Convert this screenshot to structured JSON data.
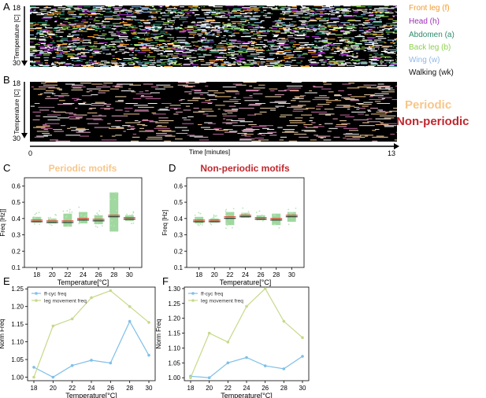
{
  "panels": {
    "A": {
      "letter": "A",
      "ylabel": "Temperature [C]",
      "tick_top": "18",
      "tick_bottom": "30",
      "legend": [
        {
          "label": "Front leg (f)",
          "color": "#f39a2e"
        },
        {
          "label": "Head (h)",
          "color": "#9b2fb8"
        },
        {
          "label": "Abdomen (a)",
          "color": "#2e8b6e"
        },
        {
          "label": "Back leg (b)",
          "color": "#8fd14f"
        },
        {
          "label": "Wing (w)",
          "color": "#8fb8e6"
        },
        {
          "label": "Walking (wk)",
          "color": "#111111"
        }
      ]
    },
    "B": {
      "letter": "B",
      "ylabel": "Temperature [C]",
      "tick_top": "18",
      "tick_bottom": "30",
      "legend": [
        {
          "label": "Periodic",
          "color": "#f7c68a"
        },
        {
          "label": "Non-periodic",
          "color": "#c0282e"
        }
      ],
      "time_label": "Time [minutes]",
      "time_start": "0",
      "time_end": "13"
    }
  },
  "colors": {
    "periodic": "#f7c68a",
    "nonperiodic": "#c0282e",
    "box": "#8fd18f",
    "median": "#d93a2a",
    "point": "#b9e3b9",
    "ffcyc": "#7fbfe8",
    "legmove": "#c7d98a"
  },
  "chart_data": [
    {
      "id": "C",
      "letter": "C",
      "type": "box",
      "title": "Periodic motifs",
      "title_color": "#f7c68a",
      "xlabel": "Temperature[°C]",
      "ylabel": "Freq [Hz]]",
      "categories": [
        "18",
        "20",
        "22",
        "24",
        "26",
        "28",
        "30"
      ],
      "ylim": [
        0.1,
        0.65
      ],
      "yticks": [
        "0.1",
        "0.2",
        "0.3",
        "0.4",
        "0.5",
        "0.6"
      ],
      "boxes": [
        {
          "q1": 0.375,
          "median": 0.39,
          "q3": 0.41
        },
        {
          "q1": 0.37,
          "median": 0.385,
          "q3": 0.4
        },
        {
          "q1": 0.35,
          "median": 0.385,
          "q3": 0.43
        },
        {
          "q1": 0.37,
          "median": 0.4,
          "q3": 0.44
        },
        {
          "q1": 0.365,
          "median": 0.395,
          "q3": 0.42
        },
        {
          "q1": 0.32,
          "median": 0.42,
          "q3": 0.56
        },
        {
          "q1": 0.385,
          "median": 0.405,
          "q3": 0.42
        }
      ]
    },
    {
      "id": "D",
      "letter": "D",
      "type": "box",
      "title": "Non-periodic motifs",
      "title_color": "#c0282e",
      "xlabel": "Temperature[°C]",
      "ylabel": "Freq [Hz]",
      "categories": [
        "18",
        "20",
        "22",
        "24",
        "26",
        "28",
        "30"
      ],
      "ylim": [
        0.1,
        0.65
      ],
      "yticks": [
        "0.1",
        "0.2",
        "0.3",
        "0.4",
        "0.5",
        "0.6"
      ],
      "boxes": [
        {
          "q1": 0.37,
          "median": 0.39,
          "q3": 0.41
        },
        {
          "q1": 0.375,
          "median": 0.39,
          "q3": 0.4
        },
        {
          "q1": 0.36,
          "median": 0.41,
          "q3": 0.44
        },
        {
          "q1": 0.405,
          "median": 0.42,
          "q3": 0.435
        },
        {
          "q1": 0.39,
          "median": 0.405,
          "q3": 0.42
        },
        {
          "q1": 0.36,
          "median": 0.4,
          "q3": 0.43
        },
        {
          "q1": 0.38,
          "median": 0.42,
          "q3": 0.44
        }
      ]
    },
    {
      "id": "E",
      "letter": "E",
      "type": "line",
      "title": "",
      "xlabel": "Temperature[°C]",
      "ylabel": "Norm Freq",
      "x": [
        18,
        20,
        22,
        24,
        26,
        28,
        30
      ],
      "xticks": [
        "18",
        "20",
        "22",
        "24",
        "26",
        "28",
        "30"
      ],
      "ylim": [
        0.99,
        1.255
      ],
      "yticks": [
        "1.00",
        "1.05",
        "1.10",
        "1.15",
        "1.20",
        "1.25"
      ],
      "series": [
        {
          "name": "ff-cyc freq",
          "color": "#7fbfe8",
          "values": [
            1.028,
            1.0,
            1.033,
            1.048,
            1.04,
            1.158,
            1.062
          ]
        },
        {
          "name": "leg movement freq",
          "color": "#c7d98a",
          "values": [
            1.0,
            1.145,
            1.165,
            1.225,
            1.245,
            1.2,
            1.155
          ]
        }
      ]
    },
    {
      "id": "F",
      "letter": "F",
      "type": "line",
      "title": "",
      "xlabel": "Temperature[°C]",
      "ylabel": "Norm Freq",
      "x": [
        18,
        20,
        22,
        24,
        26,
        28,
        30
      ],
      "xticks": [
        "18",
        "20",
        "22",
        "24",
        "26",
        "28",
        "30"
      ],
      "ylim": [
        0.99,
        1.305
      ],
      "yticks": [
        "1.00",
        "1.05",
        "1.10",
        "1.15",
        "1.20",
        "1.25",
        "1.30"
      ],
      "series": [
        {
          "name": "ff-cyc freq",
          "color": "#7fbfe8",
          "values": [
            1.005,
            1.0,
            1.05,
            1.068,
            1.04,
            1.03,
            1.072
          ]
        },
        {
          "name": "leg movement freq",
          "color": "#c7d98a",
          "values": [
            1.0,
            1.15,
            1.12,
            1.24,
            1.3,
            1.19,
            1.135
          ]
        }
      ]
    }
  ]
}
